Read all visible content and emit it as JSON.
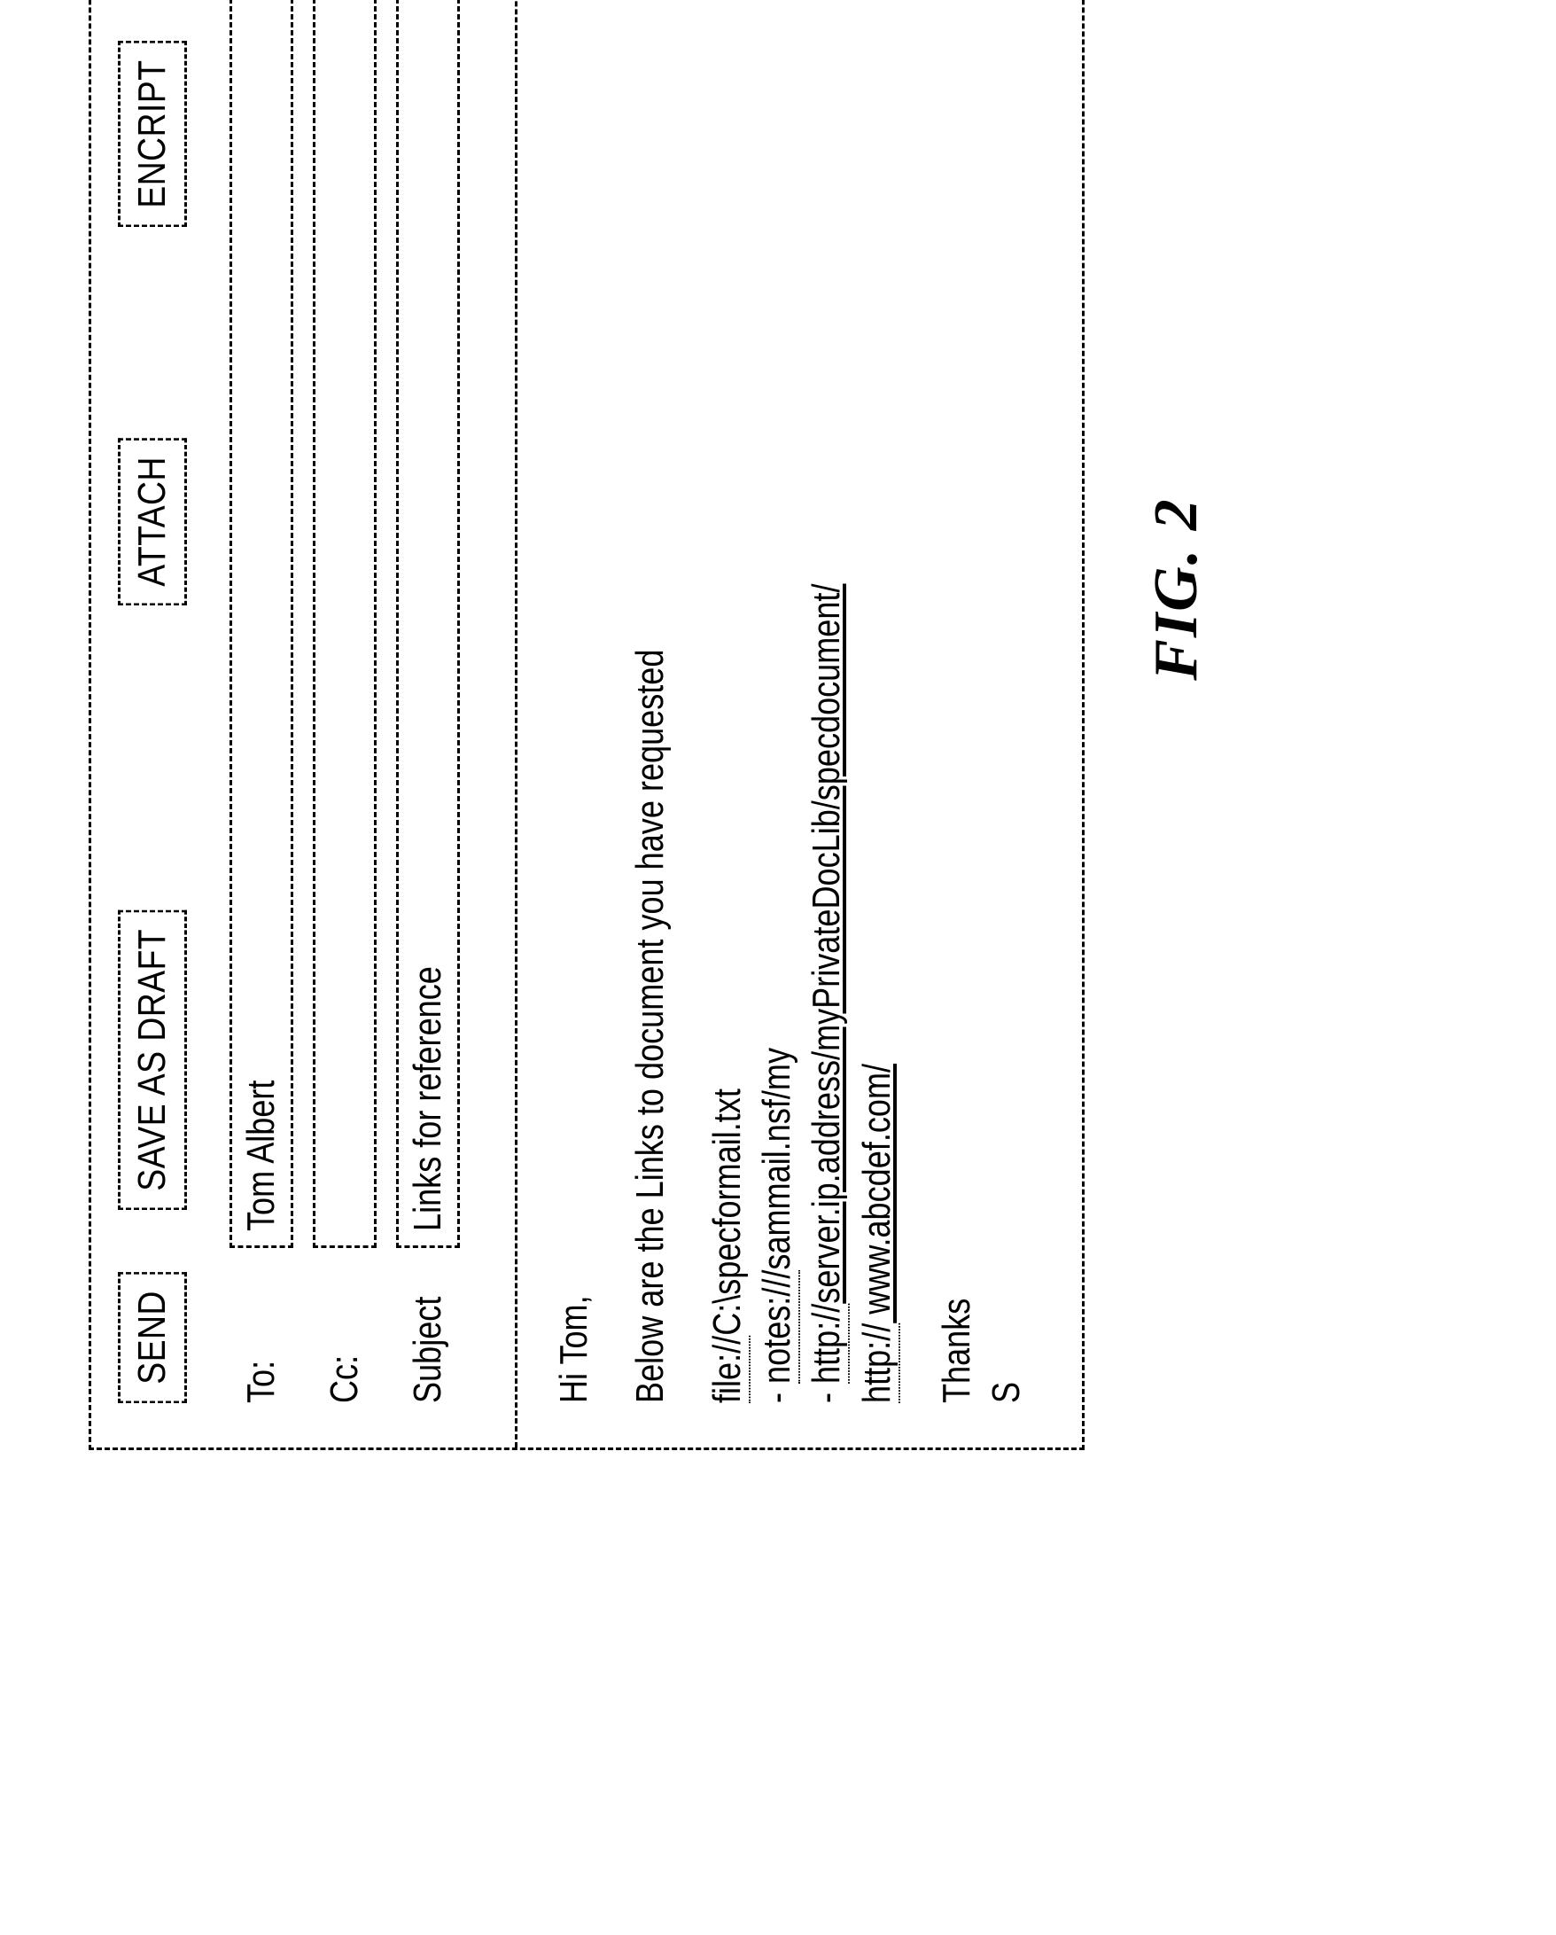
{
  "buttons": {
    "send": "SEND",
    "save": "SAVE AS DRAFT",
    "attach": "ATTACH",
    "encrypt": "ENCRIPT"
  },
  "fields": {
    "to": {
      "label": "To:",
      "value": "Tom Albert"
    },
    "cc": {
      "label": "Cc:",
      "value": ""
    },
    "subject": {
      "label": "Subject",
      "value": "Links for reference"
    }
  },
  "body": {
    "greeting": "Hi Tom,",
    "intro": "Below are the Links to document you have requested",
    "links": [
      {
        "bullet": "",
        "prefix": "file://",
        "rest": "C:\\specformail.txt",
        "underline": false
      },
      {
        "bullet": "- ",
        "prefix": "notes:///",
        "rest": "sammail.nsf/my",
        "underline": false
      },
      {
        "bullet": "- ",
        "prefix": "http://",
        "rest": "server.ip.address/myPrivateDocLib/specdocument/",
        "underline": true
      },
      {
        "bullet": "",
        "prefix": "http://",
        "rest": " www.abcdef.com/",
        "underline": true
      }
    ],
    "closing1": "Thanks",
    "closing2": "S"
  },
  "caption": "FIG. 2",
  "colors": {
    "border": "#000000",
    "background": "#ffffff",
    "text": "#000000"
  }
}
